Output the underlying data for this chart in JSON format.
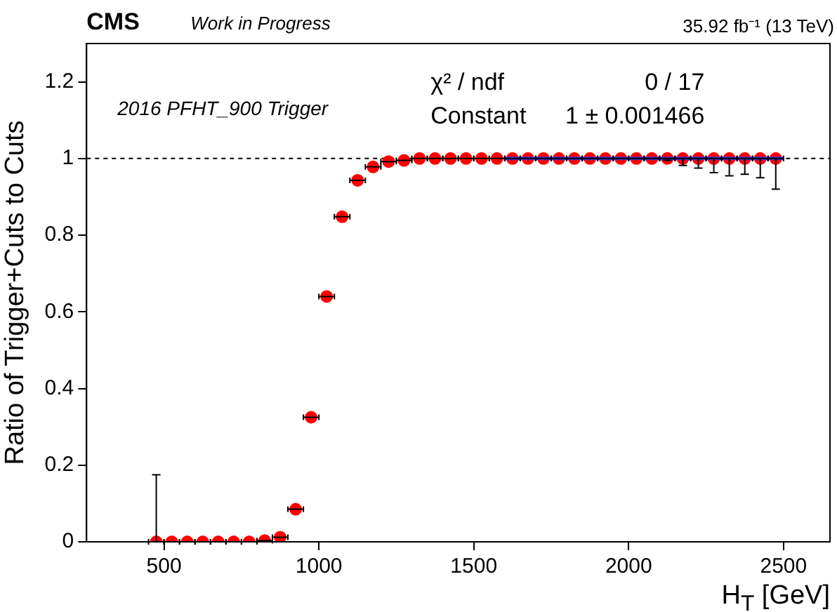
{
  "chart_data": {
    "type": "scatter",
    "title": "CMS",
    "subtitle": "Work in Progress",
    "ylabel": "Ratio of Trigger+Cuts to Cuts",
    "xlabel": "H$_{T}$ [GeV]",
    "annotations": [
      "35.92 fb⁻¹ (13 TeV)",
      "2016 PFHT_900 Trigger",
      "χ² / ndf",
      "0 / 17",
      "Constant",
      "1 ± 0.001466"
    ],
    "xlim": [
      250,
      2650
    ],
    "xticks": [
      500,
      1000,
      1500,
      2000,
      2500
    ],
    "ylim": [
      0,
      1.3
    ],
    "yticks": [
      0,
      0.2,
      0.4,
      0.6,
      0.8,
      1,
      1.2
    ],
    "grid": false,
    "legend": false,
    "marker": "circle",
    "ref_lines": [
      {
        "axis": "y",
        "value": 1,
        "color": "#000000",
        "line_style": "dashed"
      }
    ],
    "series": [
      {
        "color": "#ff0000",
        "x": [
          475,
          525,
          575,
          625,
          675,
          725,
          775,
          825,
          875,
          925,
          975,
          1025,
          1075,
          1125,
          1175,
          1225,
          1275,
          1325,
          1375,
          1425,
          1475,
          1525,
          1575,
          1625,
          1675,
          1725,
          1775,
          1825,
          1875,
          1925,
          1975,
          2025,
          2075,
          2125,
          2175,
          2225,
          2275,
          2325,
          2375,
          2425,
          2475
        ],
        "values": [
          0,
          0,
          0,
          0,
          0,
          0,
          0,
          0.003,
          0.012,
          0.085,
          0.325,
          0.64,
          0.848,
          0.943,
          0.978,
          0.992,
          0.995,
          1,
          1,
          1,
          1,
          1,
          1,
          1,
          1,
          1,
          1,
          1,
          1,
          1,
          1,
          1,
          1,
          1,
          1,
          1,
          1,
          1,
          1,
          1,
          1
        ],
        "xerrors": [
          25,
          25,
          25,
          25,
          25,
          25,
          25,
          25,
          25,
          25,
          25,
          25,
          25,
          25,
          25,
          25,
          25,
          25,
          25,
          25,
          25,
          25,
          25,
          25,
          25,
          25,
          25,
          25,
          25,
          25,
          25,
          25,
          25,
          25,
          25,
          25,
          25,
          25,
          25,
          25,
          25
        ],
        "errors": [
          [
            0,
            0.175
          ],
          null,
          null,
          null,
          null,
          null,
          null,
          null,
          null,
          null,
          null,
          null,
          null,
          null,
          null,
          null,
          null,
          null,
          null,
          null,
          null,
          null,
          null,
          null,
          null,
          null,
          null,
          null,
          null,
          null,
          null,
          null,
          null,
          [
            0.995,
            1
          ],
          [
            0.982,
            1
          ],
          [
            0.975,
            1
          ],
          [
            0.963,
            1
          ],
          [
            0.955,
            1
          ],
          [
            0.959,
            1
          ],
          [
            0.95,
            1
          ],
          [
            0.92,
            1
          ]
        ]
      },
      {
        "type": "line",
        "color": "#4b2bd6",
        "x": [
          1600,
          2500
        ],
        "values": [
          1,
          1
        ],
        "marker": "none"
      }
    ]
  }
}
